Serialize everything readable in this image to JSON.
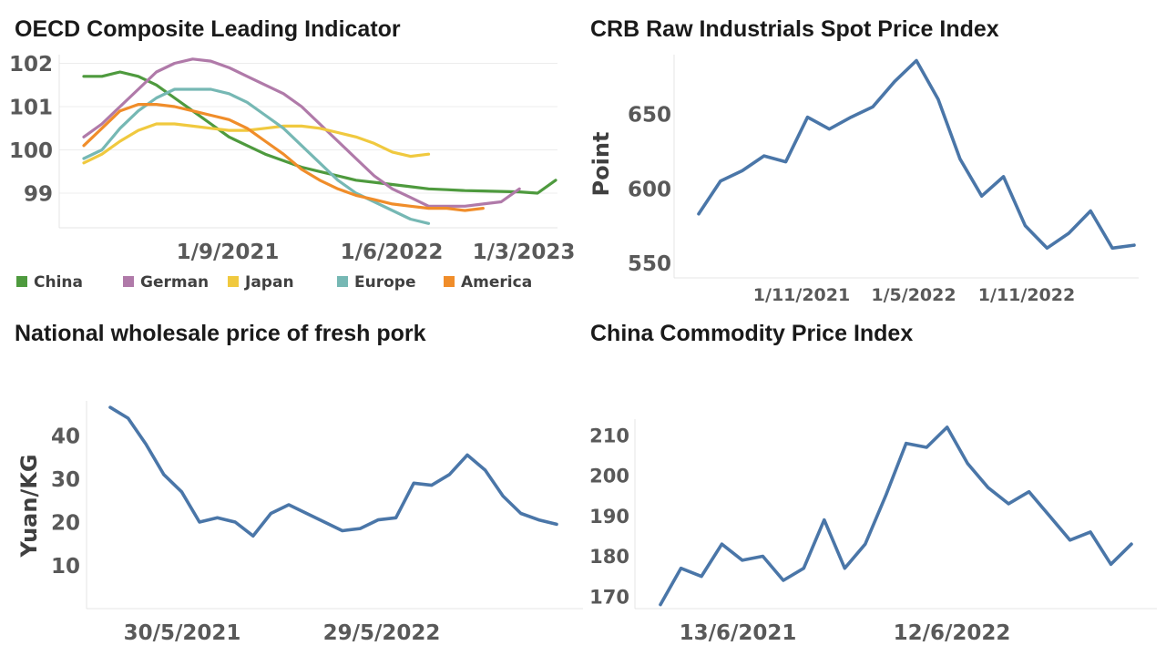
{
  "chart_data": [
    {
      "type": "line",
      "title": "OECD Composite Leading Indicator",
      "xlabel": "",
      "ylabel": "",
      "x_ticks": [
        "1/9/2021",
        "1/6/2022",
        "1/3/2023"
      ],
      "y_ticks": [
        99,
        100,
        101,
        102
      ],
      "ylim": [
        98.2,
        102.2
      ],
      "x": [
        "2021-01",
        "2021-02",
        "2021-03",
        "2021-04",
        "2021-05",
        "2021-06",
        "2021-07",
        "2021-08",
        "2021-09",
        "2021-10",
        "2021-11",
        "2021-12",
        "2022-01",
        "2022-02",
        "2022-03",
        "2022-04",
        "2022-05",
        "2022-06",
        "2022-07",
        "2022-08",
        "2022-09",
        "2022-10",
        "2022-11",
        "2022-12",
        "2023-01",
        "2023-02",
        "2023-03"
      ],
      "series": [
        {
          "name": "China",
          "color": "#4e9a3e",
          "values": [
            101.7,
            101.7,
            101.8,
            101.7,
            101.5,
            101.2,
            100.9,
            100.6,
            100.3,
            100.1,
            99.9,
            99.75,
            99.6,
            99.5,
            99.4,
            99.3,
            99.25,
            99.2,
            99.15,
            99.1,
            99.08,
            99.06,
            99.05,
            99.04,
            99.03,
            99.0,
            99.3
          ]
        },
        {
          "name": "German",
          "color": "#b07aa9",
          "values": [
            100.3,
            100.6,
            101.0,
            101.4,
            101.8,
            102.0,
            102.1,
            102.05,
            101.9,
            101.7,
            101.5,
            101.3,
            101.0,
            100.6,
            100.2,
            99.8,
            99.4,
            99.1,
            98.9,
            98.7,
            98.7,
            98.7,
            98.75,
            98.8,
            99.1,
            null,
            null
          ]
        },
        {
          "name": "Japan",
          "color": "#f0c93f",
          "values": [
            99.7,
            99.9,
            100.2,
            100.45,
            100.6,
            100.6,
            100.55,
            100.5,
            100.45,
            100.45,
            100.5,
            100.55,
            100.55,
            100.5,
            100.4,
            100.3,
            100.15,
            99.95,
            99.85,
            99.9,
            null,
            null,
            null,
            null,
            null,
            null,
            null
          ]
        },
        {
          "name": "Europe",
          "color": "#76b8b4",
          "values": [
            99.8,
            100.0,
            100.5,
            100.9,
            101.2,
            101.4,
            101.4,
            101.4,
            101.3,
            101.1,
            100.8,
            100.5,
            100.1,
            99.7,
            99.3,
            99.0,
            98.8,
            98.6,
            98.4,
            98.3,
            null,
            null,
            null,
            null,
            null,
            null,
            null
          ]
        },
        {
          "name": "America",
          "color": "#f08d2a",
          "values": [
            100.1,
            100.5,
            100.9,
            101.05,
            101.05,
            101.0,
            100.9,
            100.8,
            100.7,
            100.5,
            100.2,
            99.9,
            99.55,
            99.3,
            99.1,
            98.95,
            98.85,
            98.75,
            98.7,
            98.65,
            98.65,
            98.6,
            98.65,
            null,
            null,
            null,
            null
          ]
        }
      ],
      "legend_position": "bottom",
      "grid": true
    },
    {
      "type": "line",
      "title": "CRB Raw Industrials Spot Price Index",
      "xlabel": "",
      "ylabel": "Point",
      "x_ticks": [
        "1/11/2021",
        "1/5/2022",
        "1/11/2022"
      ],
      "y_ticks": [
        550,
        600,
        650
      ],
      "ylim": [
        540,
        690
      ],
      "x": [
        "2021-06",
        "2021-07",
        "2021-08",
        "2021-09",
        "2021-10",
        "2021-11",
        "2021-12",
        "2022-01",
        "2022-02",
        "2022-03",
        "2022-04",
        "2022-05",
        "2022-06",
        "2022-07",
        "2022-08",
        "2022-09",
        "2022-10",
        "2022-11",
        "2022-12",
        "2023-01",
        "2023-02"
      ],
      "series": [
        {
          "name": "",
          "color": "#4a76a8",
          "values": [
            583,
            605,
            612,
            622,
            618,
            648,
            640,
            648,
            655,
            672,
            686,
            660,
            620,
            595,
            608,
            575,
            560,
            570,
            585,
            560,
            562
          ]
        }
      ],
      "legend_position": "none",
      "grid": false
    },
    {
      "type": "line",
      "title": "National wholesale price of fresh pork",
      "xlabel": "",
      "ylabel": "Yuan/KG",
      "x_ticks": [
        "30/5/2021",
        "29/5/2022"
      ],
      "y_ticks": [
        10,
        20,
        30,
        40
      ],
      "ylim": [
        0,
        48
      ],
      "x": [
        "2021-02",
        "2021-03",
        "2021-04",
        "2021-05",
        "2021-06",
        "2021-07",
        "2021-08",
        "2021-09",
        "2021-10",
        "2021-11",
        "2021-12",
        "2022-01",
        "2022-02",
        "2022-03",
        "2022-04",
        "2022-05",
        "2022-06",
        "2022-07",
        "2022-08",
        "2022-09",
        "2022-10",
        "2022-11",
        "2022-12",
        "2023-01",
        "2023-02",
        "2023-03"
      ],
      "series": [
        {
          "name": "",
          "color": "#4a76a8",
          "values": [
            46.5,
            44,
            38,
            31,
            27,
            20,
            21,
            20,
            16.8,
            22,
            24,
            22,
            20,
            18,
            18.5,
            20.5,
            21,
            29,
            28.5,
            31,
            35.5,
            32,
            26,
            22,
            20.5,
            19.5
          ]
        }
      ],
      "legend_position": "none",
      "grid": false
    },
    {
      "type": "line",
      "title": "China Commodity Price Index",
      "xlabel": "",
      "ylabel": "",
      "x_ticks": [
        "13/6/2021",
        "12/6/2022"
      ],
      "y_ticks": [
        170,
        180,
        190,
        200,
        210
      ],
      "ylim": [
        167,
        214
      ],
      "x": [
        "2021-04",
        "2021-05",
        "2021-06",
        "2021-07",
        "2021-08",
        "2021-09",
        "2021-10",
        "2021-11",
        "2021-12",
        "2022-01",
        "2022-02",
        "2022-03",
        "2022-04",
        "2022-05",
        "2022-06",
        "2022-07",
        "2022-08",
        "2022-09",
        "2022-10",
        "2022-11",
        "2022-12",
        "2023-01",
        "2023-02",
        "2023-03"
      ],
      "series": [
        {
          "name": "",
          "color": "#4a76a8",
          "values": [
            168,
            177,
            175,
            183,
            179,
            180,
            174,
            177,
            189,
            177,
            183,
            195,
            208,
            207,
            212,
            203,
            197,
            193,
            196,
            190,
            184,
            186,
            178,
            183
          ]
        }
      ],
      "legend_position": "none",
      "grid": false
    }
  ]
}
